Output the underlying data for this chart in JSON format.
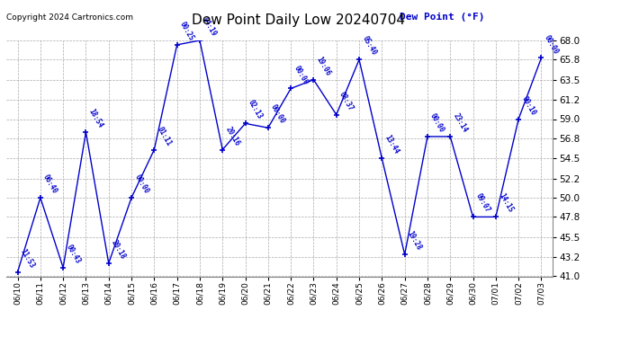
{
  "title": "Dew Point Daily Low 20240704",
  "copyright": "Copyright 2024 Cartronics.com",
  "legend_label": "Dew Point (°F)",
  "background_color": "#ffffff",
  "plot_bg_color": "#ffffff",
  "line_color": "#0000cc",
  "text_color": "#0000cc",
  "ylim": [
    41.0,
    68.0
  ],
  "yticks": [
    41.0,
    43.2,
    45.5,
    47.8,
    50.0,
    52.2,
    54.5,
    56.8,
    59.0,
    61.2,
    63.5,
    65.8,
    68.0
  ],
  "dates": [
    "06/10",
    "06/11",
    "06/12",
    "06/13",
    "06/14",
    "06/15",
    "06/16",
    "06/17",
    "06/18",
    "06/19",
    "06/20",
    "06/21",
    "06/22",
    "06/23",
    "06/24",
    "06/25",
    "06/26",
    "06/27",
    "06/28",
    "06/29",
    "06/30",
    "07/01",
    "07/02",
    "07/03"
  ],
  "values": [
    41.5,
    50.0,
    42.0,
    57.5,
    42.5,
    50.0,
    55.5,
    67.5,
    68.0,
    55.5,
    58.5,
    58.0,
    62.5,
    63.5,
    59.5,
    65.8,
    54.5,
    43.5,
    57.0,
    57.0,
    47.8,
    47.8,
    59.0,
    66.0
  ],
  "times": [
    "11:53",
    "06:40",
    "00:43",
    "18:54",
    "20:18",
    "00:00",
    "01:11",
    "00:25",
    "04:19",
    "20:16",
    "02:13",
    "00:00",
    "00:00",
    "19:06",
    "08:37",
    "05:40",
    "13:44",
    "19:28",
    "00:00",
    "23:14",
    "09:07",
    "14:15",
    "00:10",
    "00:00"
  ]
}
